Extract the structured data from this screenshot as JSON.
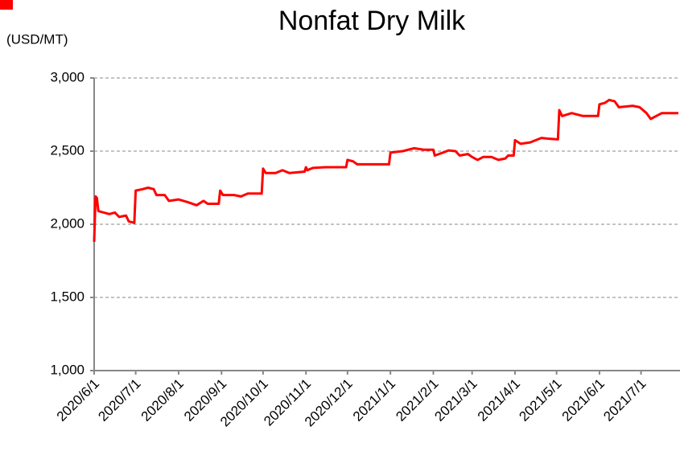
{
  "chart_data": {
    "type": "line",
    "title": "Nonfat Dry Milk",
    "y_label": "(USD/MT)",
    "xlim": [
      "2020/6/1",
      "2021/7/28"
    ],
    "xticks": [
      "2020/6/1",
      "2020/7/1",
      "2020/8/1",
      "2020/9/1",
      "2020/10/1",
      "2020/11/1",
      "2020/12/1",
      "2021/1/1",
      "2021/2/1",
      "2021/3/1",
      "2021/4/1",
      "2021/5/1",
      "2021/6/1",
      "2021/7/1"
    ],
    "ylim": [
      1000,
      3000
    ],
    "yticks": [
      {
        "value": 1000,
        "label": "1,000"
      },
      {
        "value": 1500,
        "label": "1,500"
      },
      {
        "value": 2000,
        "label": "2,000"
      },
      {
        "value": 2500,
        "label": "2,500"
      },
      {
        "value": 3000,
        "label": "3,000"
      }
    ],
    "grid": true,
    "series": [
      {
        "name": "Nonfat Dry Milk",
        "color": "#ff0000",
        "x": [
          "2020/6/1",
          "2020/6/2",
          "2020/6/3",
          "2020/6/4",
          "2020/6/8",
          "2020/6/12",
          "2020/6/16",
          "2020/6/19",
          "2020/6/24",
          "2020/6/26",
          "2020/6/30",
          "2020/7/1",
          "2020/7/6",
          "2020/7/10",
          "2020/7/14",
          "2020/7/16",
          "2020/7/22",
          "2020/7/25",
          "2020/8/1",
          "2020/8/8",
          "2020/8/14",
          "2020/8/19",
          "2020/8/22",
          "2020/8/30",
          "2020/8/31",
          "2020/9/2",
          "2020/9/10",
          "2020/9/15",
          "2020/9/20",
          "2020/9/30",
          "2020/10/1",
          "2020/10/3",
          "2020/10/10",
          "2020/10/15",
          "2020/10/20",
          "2020/10/31",
          "2020/11/1",
          "2020/11/2",
          "2020/11/6",
          "2020/11/15",
          "2020/11/30",
          "2020/12/1",
          "2020/12/5",
          "2020/12/8",
          "2020/12/31",
          "2021/1/1",
          "2021/1/10",
          "2021/1/18",
          "2021/1/25",
          "2021/2/1",
          "2021/2/2",
          "2021/2/8",
          "2021/2/12",
          "2021/2/17",
          "2021/2/20",
          "2021/2/26",
          "2021/3/1",
          "2021/3/5",
          "2021/3/9",
          "2021/3/15",
          "2021/3/20",
          "2021/3/25",
          "2021/3/27",
          "2021/3/31",
          "2021/4/1",
          "2021/4/5",
          "2021/4/12",
          "2021/4/20",
          "2021/4/25",
          "2021/5/2",
          "2021/5/3",
          "2021/5/5",
          "2021/5/12",
          "2021/5/20",
          "2021/5/31",
          "2021/6/1",
          "2021/6/5",
          "2021/6/8",
          "2021/6/12",
          "2021/6/15",
          "2021/6/25",
          "2021/6/30",
          "2021/7/5",
          "2021/7/8",
          "2021/7/12",
          "2021/7/16",
          "2021/7/20",
          "2021/7/28"
        ],
        "values": [
          1880,
          2190,
          2180,
          2090,
          2080,
          2070,
          2080,
          2050,
          2060,
          2020,
          2010,
          2230,
          2240,
          2250,
          2240,
          2200,
          2200,
          2160,
          2170,
          2150,
          2130,
          2160,
          2140,
          2140,
          2230,
          2200,
          2200,
          2190,
          2210,
          2210,
          2380,
          2350,
          2350,
          2370,
          2350,
          2360,
          2390,
          2370,
          2385,
          2390,
          2390,
          2440,
          2430,
          2410,
          2410,
          2490,
          2500,
          2520,
          2510,
          2510,
          2470,
          2490,
          2505,
          2500,
          2470,
          2480,
          2460,
          2440,
          2460,
          2460,
          2440,
          2450,
          2470,
          2470,
          2575,
          2550,
          2560,
          2590,
          2585,
          2580,
          2780,
          2740,
          2760,
          2740,
          2740,
          2820,
          2830,
          2850,
          2840,
          2800,
          2810,
          2800,
          2760,
          2720,
          2740,
          2760,
          2760,
          2760
        ]
      }
    ]
  }
}
